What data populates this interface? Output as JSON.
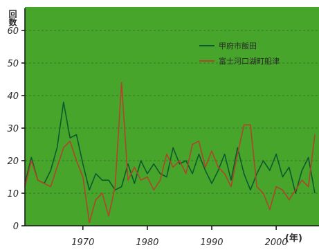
{
  "chart_data": {
    "type": "line",
    "title": "",
    "ylabel": "回数",
    "xlabel": "(年)",
    "xlim": [
      1961,
      2006
    ],
    "ylim": [
      0,
      60
    ],
    "yticks": [
      0,
      10,
      20,
      30,
      40,
      50,
      60
    ],
    "xticks": [
      1970,
      1980,
      1990,
      2000
    ],
    "grid": true,
    "legend_position": "top-right",
    "background_color": "#46a52a",
    "x": [
      1961,
      1962,
      1963,
      1964,
      1965,
      1966,
      1967,
      1968,
      1969,
      1970,
      1971,
      1972,
      1973,
      1974,
      1975,
      1976,
      1977,
      1978,
      1979,
      1980,
      1981,
      1982,
      1983,
      1984,
      1985,
      1986,
      1987,
      1988,
      1989,
      1990,
      1991,
      1992,
      1993,
      1994,
      1995,
      1996,
      1997,
      1998,
      1999,
      2000,
      2001,
      2002,
      2003,
      2004,
      2005,
      2006
    ],
    "series": [
      {
        "name": "甲府市飯田",
        "color": "#0d5a2e",
        "values": [
          13,
          21,
          14,
          13,
          17,
          24,
          38,
          27,
          28,
          19,
          11,
          16,
          14,
          14,
          11,
          12,
          19,
          13,
          20,
          16,
          19,
          16,
          15,
          24,
          19,
          20,
          16,
          22,
          17,
          13,
          17,
          22,
          14,
          24,
          16,
          11,
          16,
          20,
          17,
          22,
          15,
          18,
          10,
          17,
          21,
          10
        ]
      },
      {
        "name": "富士河口湖町船津",
        "color": "#b0452a",
        "values": [
          12,
          20,
          14,
          13,
          12,
          18,
          24,
          26,
          20,
          15,
          1,
          8,
          10,
          3,
          12,
          44,
          14,
          18,
          14,
          15,
          11,
          14,
          22,
          18,
          20,
          16,
          25,
          26,
          18,
          23,
          18,
          16,
          12,
          22,
          31,
          31,
          12,
          10,
          5,
          12,
          11,
          8,
          11,
          14,
          12,
          28
        ]
      }
    ]
  }
}
